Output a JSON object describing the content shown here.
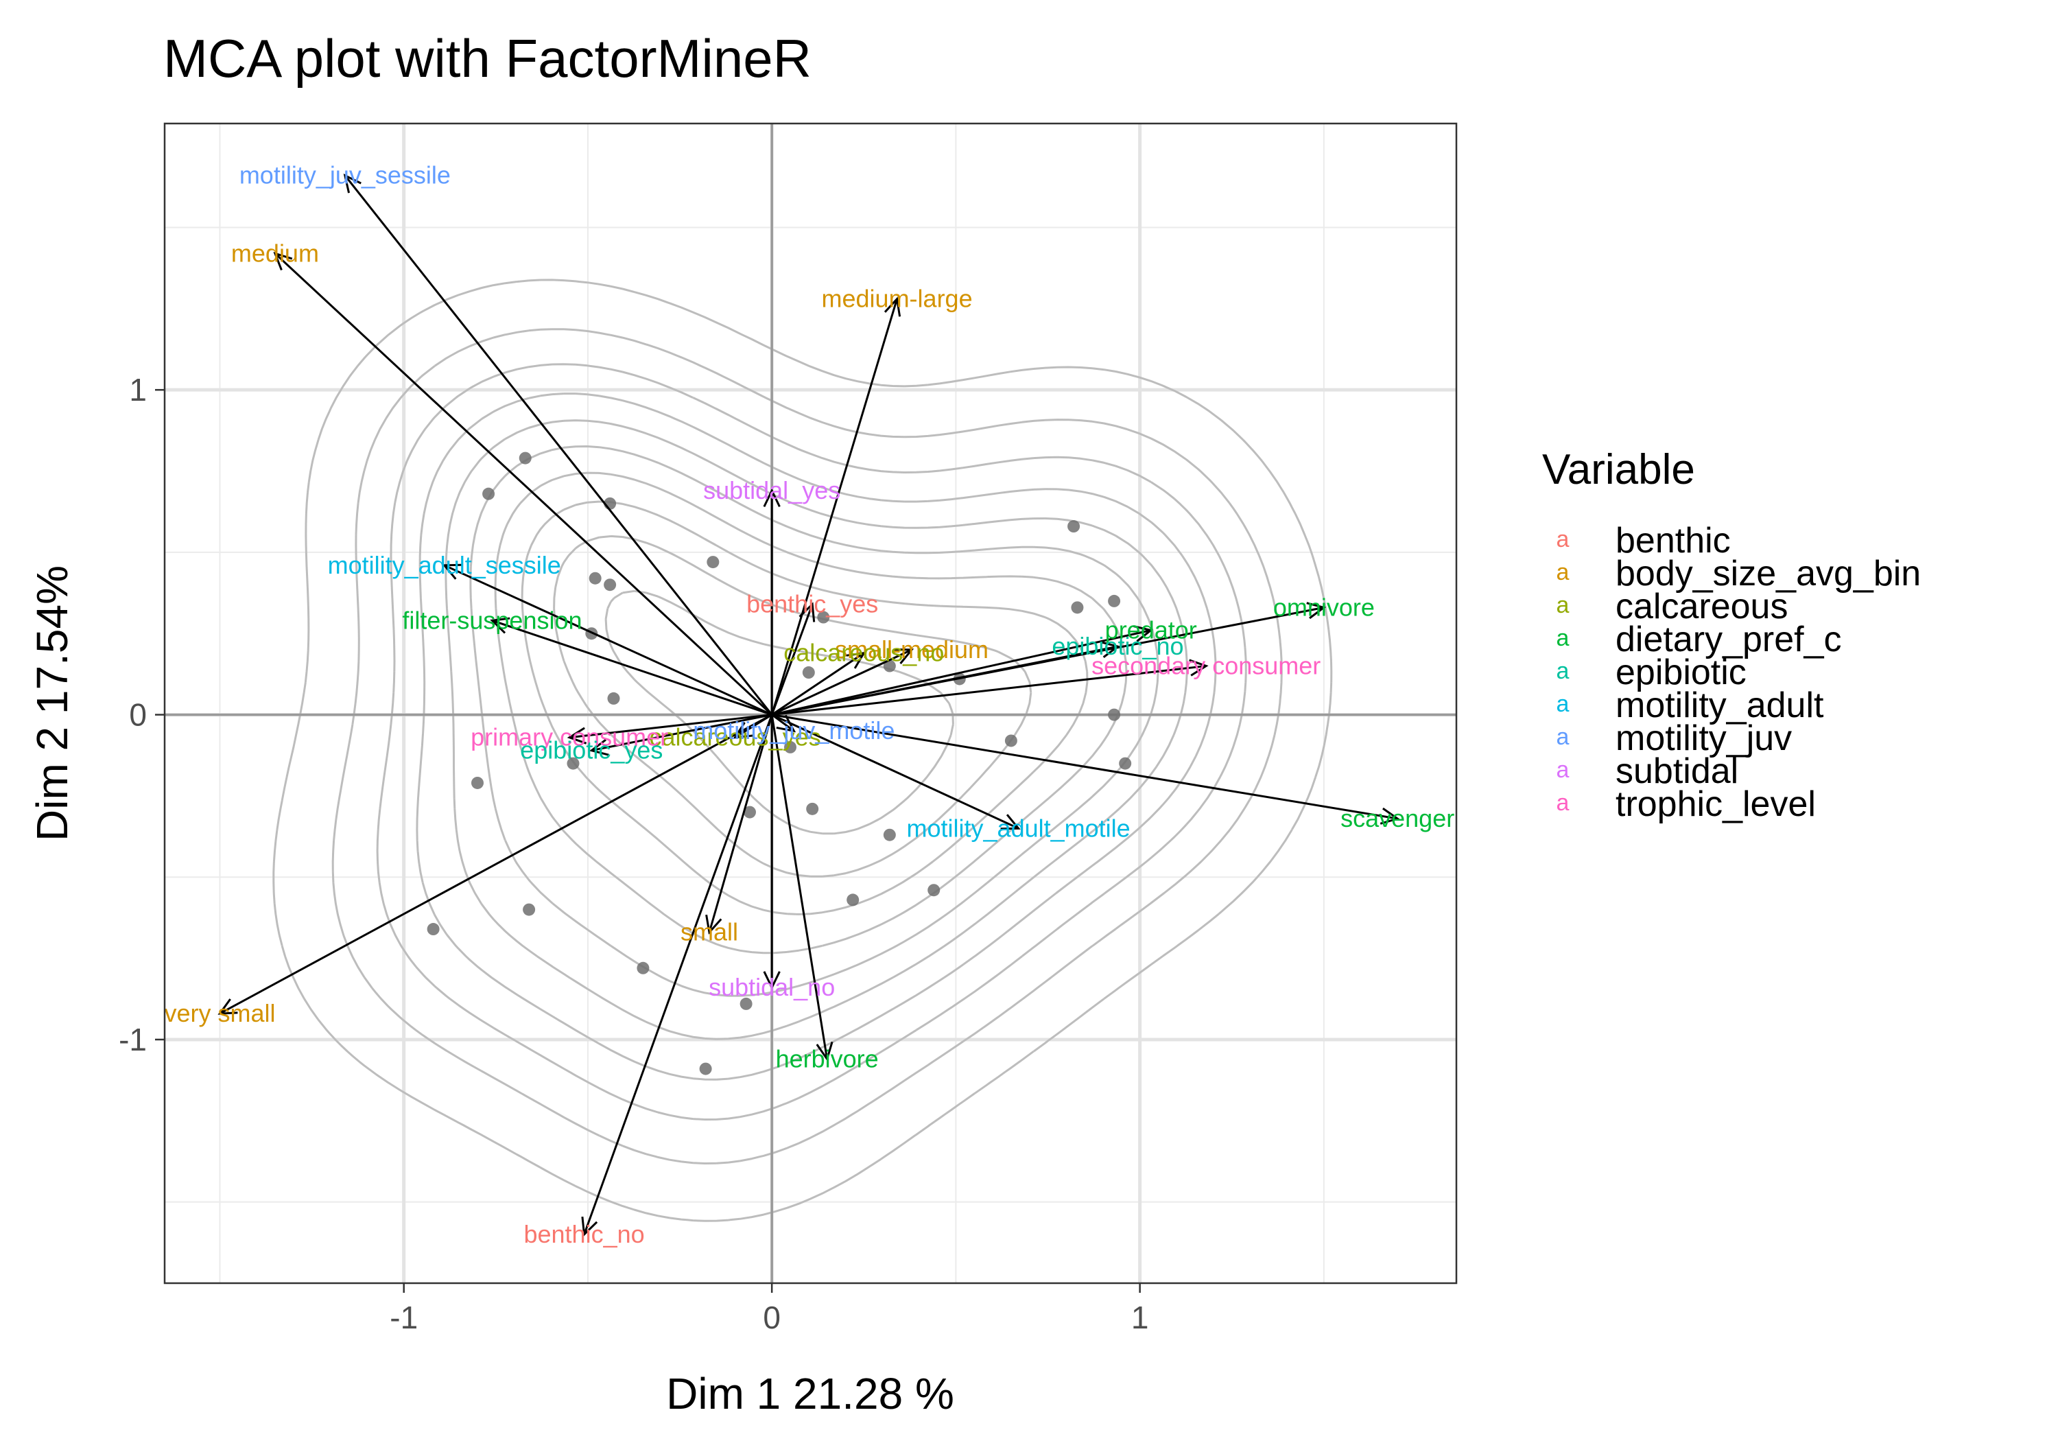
{
  "chart_data": {
    "type": "scatter",
    "title": "MCA plot with FactorMineR",
    "xlabel": "Dim 1 21.28 %",
    "ylabel": "Dim 2 17.54%",
    "xlim": [
      -1.65,
      1.86
    ],
    "ylim": [
      -1.75,
      1.82
    ],
    "x_ticks": [
      -1,
      0,
      1
    ],
    "x_tick_labels": [
      "-1",
      "0",
      "1"
    ],
    "y_ticks": [
      -1,
      0,
      1
    ],
    "y_tick_labels": [
      "-1",
      "0",
      "1"
    ],
    "grid": true,
    "legend": {
      "title": "Variable",
      "position": "right",
      "key_glyph": "a",
      "items": [
        {
          "name": "benthic",
          "color": "#F8766D"
        },
        {
          "name": "body_size_avg_bin",
          "color": "#D39200"
        },
        {
          "name": "calcareous",
          "color": "#93AA00"
        },
        {
          "name": "dietary_pref_c",
          "color": "#00BA38"
        },
        {
          "name": "epibiotic",
          "color": "#00C19F"
        },
        {
          "name": "motility_adult",
          "color": "#00B9E3"
        },
        {
          "name": "motility_juv",
          "color": "#619CFF"
        },
        {
          "name": "subtidal",
          "color": "#DB72FB"
        },
        {
          "name": "trophic_level",
          "color": "#FF61C3"
        }
      ]
    },
    "arrows": [
      {
        "label": "motility_juv_sessile",
        "variable": "motility_juv",
        "x": -1.16,
        "y": 1.66
      },
      {
        "label": "medium",
        "variable": "body_size_avg_bin",
        "x": -1.35,
        "y": 1.42
      },
      {
        "label": "medium-large",
        "variable": "body_size_avg_bin",
        "x": 0.34,
        "y": 1.28
      },
      {
        "label": "subtidal_yes",
        "variable": "subtidal",
        "x": 0.0,
        "y": 0.69
      },
      {
        "label": "motility_adult_sessile",
        "variable": "motility_adult",
        "x": -0.89,
        "y": 0.46
      },
      {
        "label": "benthic_yes",
        "variable": "benthic",
        "x": 0.11,
        "y": 0.34
      },
      {
        "label": "filter-suspension",
        "variable": "dietary_pref_c",
        "x": -0.76,
        "y": 0.29
      },
      {
        "label": "omnivore",
        "variable": "dietary_pref_c",
        "x": 1.5,
        "y": 0.33
      },
      {
        "label": "predator",
        "variable": "dietary_pref_c",
        "x": 1.03,
        "y": 0.26
      },
      {
        "label": "epibiotic_no",
        "variable": "epibiotic",
        "x": 0.94,
        "y": 0.21
      },
      {
        "label": "small-medium",
        "variable": "body_size_avg_bin",
        "x": 0.38,
        "y": 0.2
      },
      {
        "label": "calcareous_no",
        "variable": "calcareous",
        "x": 0.25,
        "y": 0.19
      },
      {
        "label": "secondary consumer",
        "variable": "trophic_level",
        "x": 1.18,
        "y": 0.15
      },
      {
        "label": "calcareous_yes",
        "variable": "calcareous",
        "x": -0.1,
        "y": -0.07
      },
      {
        "label": "motility_juv_motile",
        "variable": "motility_juv",
        "x": 0.06,
        "y": -0.05
      },
      {
        "label": "primary consumer",
        "variable": "trophic_level",
        "x": -0.55,
        "y": -0.07
      },
      {
        "label": "epibiotic_yes",
        "variable": "epibiotic",
        "x": -0.49,
        "y": -0.11
      },
      {
        "label": "motility_adult_motile",
        "variable": "motility_adult",
        "x": 0.67,
        "y": -0.35
      },
      {
        "label": "scavenger",
        "variable": "dietary_pref_c",
        "x": 1.7,
        "y": -0.32
      },
      {
        "label": "small",
        "variable": "body_size_avg_bin",
        "x": -0.17,
        "y": -0.67
      },
      {
        "label": "subtidal_no",
        "variable": "subtidal",
        "x": 0.0,
        "y": -0.84
      },
      {
        "label": "herbivore",
        "variable": "dietary_pref_c",
        "x": 0.15,
        "y": -1.06
      },
      {
        "label": "very small",
        "variable": "body_size_avg_bin",
        "x": -1.5,
        "y": -0.92
      },
      {
        "label": "benthic_no",
        "variable": "benthic",
        "x": -0.51,
        "y": -1.6
      }
    ],
    "points": [
      {
        "x": -0.67,
        "y": 0.79
      },
      {
        "x": -0.77,
        "y": 0.68
      },
      {
        "x": -0.44,
        "y": 0.65
      },
      {
        "x": -0.16,
        "y": 0.47
      },
      {
        "x": -0.44,
        "y": 0.4
      },
      {
        "x": -0.48,
        "y": 0.42
      },
      {
        "x": -0.49,
        "y": 0.25
      },
      {
        "x": -0.43,
        "y": 0.05
      },
      {
        "x": 0.82,
        "y": 0.58
      },
      {
        "x": 0.93,
        "y": 0.35
      },
      {
        "x": 0.83,
        "y": 0.33
      },
      {
        "x": 0.14,
        "y": 0.3
      },
      {
        "x": 0.1,
        "y": 0.13
      },
      {
        "x": 0.32,
        "y": 0.15
      },
      {
        "x": 0.51,
        "y": 0.11
      },
      {
        "x": 0.93,
        "y": 0.0
      },
      {
        "x": 0.05,
        "y": -0.1
      },
      {
        "x": 0.65,
        "y": -0.08
      },
      {
        "x": 0.96,
        "y": -0.15
      },
      {
        "x": -0.8,
        "y": -0.21
      },
      {
        "x": -0.54,
        "y": -0.15
      },
      {
        "x": -0.06,
        "y": -0.3
      },
      {
        "x": 0.11,
        "y": -0.29
      },
      {
        "x": 0.32,
        "y": -0.37
      },
      {
        "x": -0.66,
        "y": -0.6
      },
      {
        "x": -0.92,
        "y": -0.66
      },
      {
        "x": 0.22,
        "y": -0.57
      },
      {
        "x": 0.44,
        "y": -0.54
      },
      {
        "x": -0.35,
        "y": -0.78
      },
      {
        "x": -0.07,
        "y": -0.89
      },
      {
        "x": -0.18,
        "y": -1.09
      }
    ]
  }
}
